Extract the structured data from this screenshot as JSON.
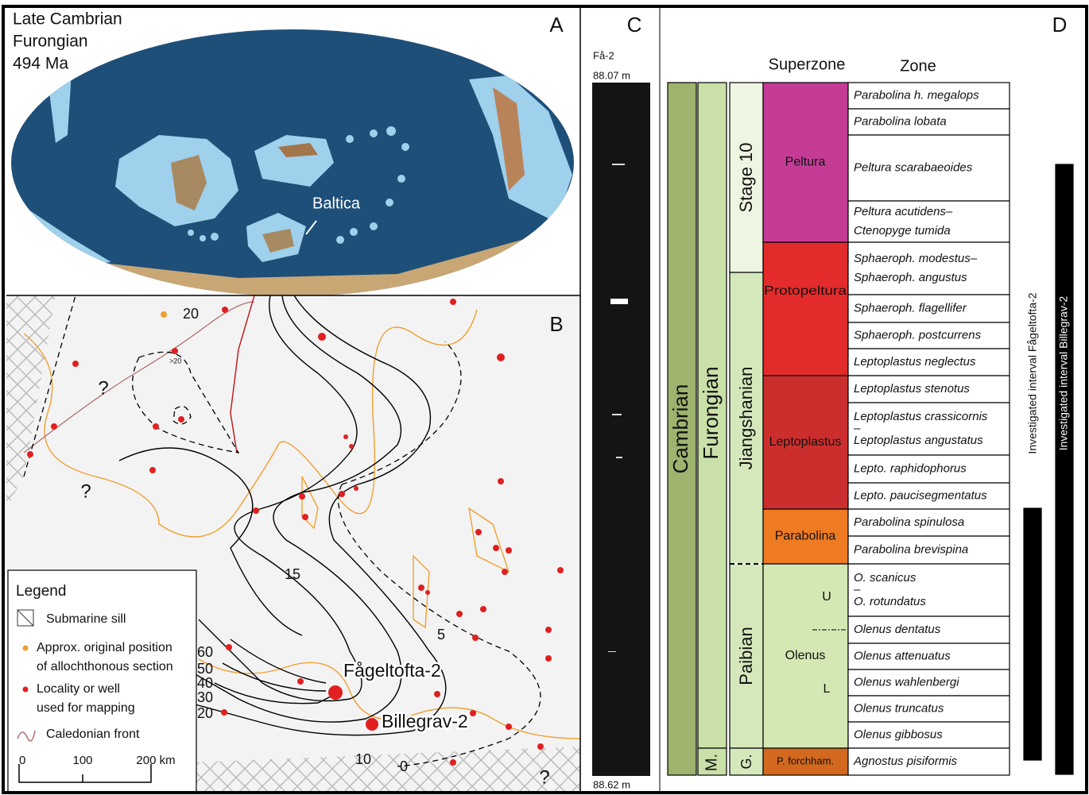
{
  "panel_a": {
    "label": "A",
    "title_lines": [
      "Late Cambrian",
      "Furongian",
      "494 Ma"
    ],
    "map_label": "Baltica"
  },
  "panel_b": {
    "label": "B",
    "contour_labels": [
      "20",
      "15",
      "5",
      "10",
      "0",
      "60",
      "50",
      "40",
      "30",
      "20"
    ],
    "small_label": ">20",
    "unknown_marks": [
      "?",
      "?",
      "?"
    ],
    "wells": [
      "Fågeltofta-2",
      "Billegrav-2"
    ],
    "legend": {
      "title": "Legend",
      "items": [
        [
          "Submarine sill"
        ],
        [
          "Approx. original position",
          "of allochthonous section"
        ],
        [
          "Locality or well",
          "used for mapping"
        ],
        [
          "Caledonian front"
        ]
      ],
      "scale": [
        "0",
        "100",
        "200 km"
      ]
    }
  },
  "panel_c": {
    "label": "C",
    "core": "Få-2",
    "top_depth": "88.07 m",
    "bottom_depth": "88.62 m"
  },
  "panel_d": {
    "label": "D",
    "headers": [
      "Superzone",
      "Zone"
    ],
    "system": "Cambrian",
    "series": [
      "Furongian",
      "M."
    ],
    "stages": [
      "Stage 10",
      "Jiangshanian",
      "Paibian",
      "G."
    ],
    "superzones": [
      "Peltura",
      "Protopeltura",
      "Leptoplastus",
      "Parabolina",
      "Olenus",
      "P. forchham."
    ],
    "subzones": [
      "U",
      "L"
    ],
    "zones": [
      {
        "lines": [
          "Parabolina h. megalops"
        ]
      },
      {
        "lines": [
          "Parabolina lobata"
        ]
      },
      {
        "lines": [
          "Peltura scarabaeoides"
        ]
      },
      {
        "lines": [
          "Peltura acutidens–",
          "Ctenopyge tumida"
        ]
      },
      {
        "lines": [
          "Sphaeroph. modestus–",
          "Sphaeroph. angustus"
        ]
      },
      {
        "lines": [
          "Sphaeroph. flagellifer"
        ]
      },
      {
        "lines": [
          "Sphaeroph. postcurrens"
        ]
      },
      {
        "lines": [
          "Leptoplastus neglectus"
        ]
      },
      {
        "lines": [
          "Leptoplastus stenotus"
        ]
      },
      {
        "lines": [
          "Leptoplastus crassicornis",
          "–",
          "Leptoplastus angustatus"
        ]
      },
      {
        "lines": [
          "Lepto. raphidophorus"
        ]
      },
      {
        "lines": [
          "Lepto. paucisegmentatus"
        ]
      },
      {
        "lines": [
          "Parabolina spinulosa"
        ]
      },
      {
        "lines": [
          "Parabolina brevispina"
        ]
      },
      {
        "lines": [
          "O. scanicus",
          "–",
          "O. rotundatus"
        ]
      },
      {
        "lines": [
          "Olenus dentatus"
        ]
      },
      {
        "lines": [
          "Olenus attenuatus"
        ]
      },
      {
        "lines": [
          "Olenus wahlenbergi"
        ]
      },
      {
        "lines": [
          "Olenus truncatus"
        ]
      },
      {
        "lines": [
          "Olenus gibbosus"
        ]
      },
      {
        "lines": [
          "Agnostus pisiformis"
        ]
      }
    ],
    "intervals": [
      "Investigated interval Fågeltofta-2",
      "Investigated interval Billegrav-2"
    ]
  }
}
